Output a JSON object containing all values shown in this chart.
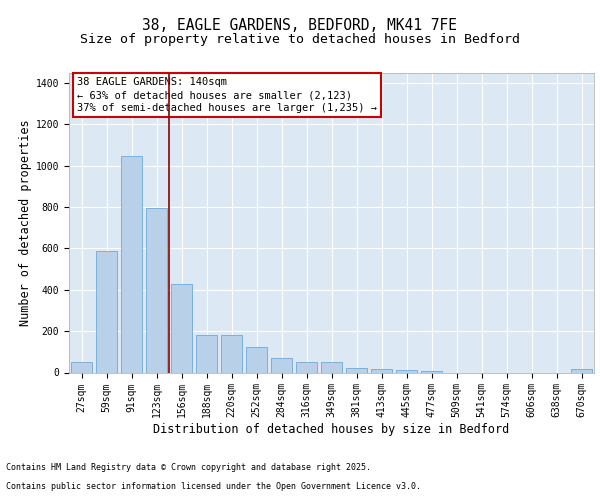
{
  "title_line1": "38, EAGLE GARDENS, BEDFORD, MK41 7FE",
  "title_line2": "Size of property relative to detached houses in Bedford",
  "xlabel": "Distribution of detached houses by size in Bedford",
  "ylabel": "Number of detached properties",
  "categories": [
    "27sqm",
    "59sqm",
    "91sqm",
    "123sqm",
    "156sqm",
    "188sqm",
    "220sqm",
    "252sqm",
    "284sqm",
    "316sqm",
    "349sqm",
    "381sqm",
    "413sqm",
    "445sqm",
    "477sqm",
    "509sqm",
    "541sqm",
    "574sqm",
    "606sqm",
    "638sqm",
    "670sqm"
  ],
  "values": [
    50,
    585,
    1045,
    795,
    430,
    180,
    180,
    125,
    70,
    50,
    50,
    22,
    18,
    12,
    8,
    0,
    0,
    0,
    0,
    0,
    15
  ],
  "bar_color": "#b8d0e8",
  "bar_edge_color": "#5a9fd4",
  "bg_color": "#dce9f5",
  "grid_color": "#ffffff",
  "vline_x": 3.5,
  "vline_color": "#8b0000",
  "annotation_text": "38 EAGLE GARDENS: 140sqm\n← 63% of detached houses are smaller (2,123)\n37% of semi-detached houses are larger (1,235) →",
  "annotation_box_color": "#cc0000",
  "ylim": [
    0,
    1450
  ],
  "yticks": [
    0,
    200,
    400,
    600,
    800,
    1000,
    1200,
    1400
  ],
  "footnote1": "Contains HM Land Registry data © Crown copyright and database right 2025.",
  "footnote2": "Contains public sector information licensed under the Open Government Licence v3.0.",
  "title_fontsize": 10.5,
  "subtitle_fontsize": 9.5,
  "axis_label_fontsize": 8.5,
  "tick_fontsize": 7,
  "annotation_fontsize": 7.5,
  "footnote_fontsize": 6
}
